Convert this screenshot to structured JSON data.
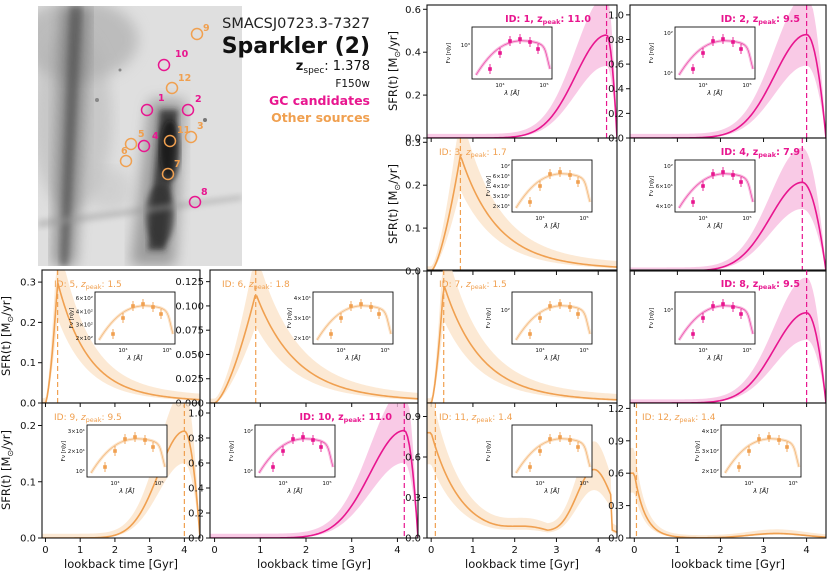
{
  "header": {
    "cluster": "SMACSJ0723.3-7327",
    "title": "Sparkler (2)",
    "z_label_main": "z",
    "z_label_sub": "spec",
    "z_value": ": 1.378",
    "filter": "F150w",
    "legend_gc": "GC candidates",
    "legend_other": "Other sources"
  },
  "colors": {
    "gc": "#e8168f",
    "other": "#f0a050",
    "gc_fill": "#f7bde0",
    "other_fill": "#fbe3c9"
  },
  "image_labels": [
    {
      "id": "9",
      "group": "other"
    },
    {
      "id": "10",
      "group": "gc"
    },
    {
      "id": "12",
      "group": "other"
    },
    {
      "id": "1",
      "group": "gc"
    },
    {
      "id": "2",
      "group": "gc"
    },
    {
      "id": "5",
      "group": "other"
    },
    {
      "id": "4",
      "group": "gc"
    },
    {
      "id": "11",
      "group": "other"
    },
    {
      "id": "3",
      "group": "other"
    },
    {
      "id": "6",
      "group": "other"
    },
    {
      "id": "7",
      "group": "other"
    },
    {
      "id": "8",
      "group": "gc"
    }
  ],
  "axes_text": {
    "xlabel": "lookback time [Gyr]",
    "ylabel": "SFR(t) [M",
    "ylabel_sun": "⊙",
    "ylabel_end": "/yr]",
    "inset_xlabel": "λ [Å]",
    "inset_ylabel": "Fν [nJy]"
  },
  "chart_data": [
    {
      "type": "line",
      "id": "1",
      "group": "gc",
      "label_prefix": "ID: 1, ",
      "label_z": "z",
      "label_zsub": "peak",
      "label_value": ": 11.0",
      "peak_gyr": 4.2,
      "ymax": 0.48,
      "ylim": [
        0,
        0.62
      ],
      "yticks": [
        0.0,
        0.2,
        0.4,
        0.6
      ],
      "yticklabels": [
        "0.0",
        "0.2",
        "0.4",
        "0.6"
      ],
      "shape": "late",
      "inset_ticks": [
        "10³"
      ]
    },
    {
      "type": "line",
      "id": "2",
      "group": "gc",
      "label_prefix": "ID: 2, ",
      "label_z": "z",
      "label_zsub": "peak",
      "label_value": ": 9.5",
      "peak_gyr": 4.0,
      "ymax": 0.84,
      "ylim": [
        0,
        1.08
      ],
      "yticks": [
        0.0,
        0.2,
        0.4,
        0.6,
        0.8,
        1.0
      ],
      "yticklabels": [
        "0.0",
        "0.2",
        "0.4",
        "0.6",
        "0.8",
        "1.0"
      ],
      "shape": "late",
      "inset_ticks": [
        "10²",
        "10¹"
      ]
    },
    {
      "type": "line",
      "id": "3",
      "group": "other",
      "label_prefix": "ID: 3, ",
      "label_z": "z",
      "label_zsub": "peak",
      "label_value": ": 1.7",
      "peak_gyr": 0.7,
      "ymax": 0.27,
      "ylim": [
        0,
        0.31
      ],
      "yticks": [
        0.0,
        0.1,
        0.2,
        0.3
      ],
      "yticklabels": [
        "0.0",
        "0.1",
        "0.2",
        "0.3"
      ],
      "shape": "early",
      "inset_ticks": [
        "10²",
        "6×10¹",
        "4×10¹",
        "3×10¹",
        "2×10¹"
      ]
    },
    {
      "type": "line",
      "id": "4",
      "group": "gc",
      "label_prefix": "ID: 4, ",
      "label_z": "z",
      "label_zsub": "peak",
      "label_value": ": 7.9",
      "peak_gyr": 3.9,
      "ymax": 0.7,
      "ylim": [
        0,
        1.05
      ],
      "yticks": [],
      "yticklabels": [],
      "shape": "late",
      "inset_ticks": [
        "10²",
        "6×10¹",
        "4×10¹"
      ]
    },
    {
      "type": "line",
      "id": "5",
      "group": "other",
      "label_prefix": "ID: 5, ",
      "label_z": "z",
      "label_zsub": "peak",
      "label_value": ": 1.5",
      "peak_gyr": 0.35,
      "ymax": 0.3,
      "ylim": [
        0,
        0.33
      ],
      "yticks": [
        0.0,
        0.1,
        0.2,
        0.3
      ],
      "yticklabels": [
        "0.0",
        "0.1",
        "0.2",
        "0.3"
      ],
      "shape": "early",
      "inset_ticks": [
        "6×10²",
        "4×10²",
        "3×10²",
        "2×10²"
      ]
    },
    {
      "type": "line",
      "id": "6",
      "group": "other",
      "label_prefix": "ID: 6, ",
      "label_z": "z",
      "label_zsub": "peak",
      "label_value": ": 1.8",
      "peak_gyr": 0.9,
      "ymax": 0.113,
      "ylim": [
        0,
        0.137
      ],
      "yticks": [
        0.0,
        0.025,
        0.05,
        0.075,
        0.1,
        0.125
      ],
      "yticklabels": [
        "0.000",
        "0.025",
        "0.050",
        "0.075",
        "0.100",
        "0.125"
      ],
      "shape": "early",
      "inset_ticks": [
        "4×10¹",
        "3×10¹",
        "2×10¹"
      ]
    },
    {
      "type": "line",
      "id": "7",
      "group": "other",
      "label_prefix": "ID: 7, ",
      "label_z": "z",
      "label_zsub": "peak",
      "label_value": ": 1.5",
      "peak_gyr": 0.3,
      "ymax": 0.42,
      "ylim": [
        0,
        0.47
      ],
      "yticks": [],
      "yticklabels": [],
      "shape": "early",
      "inset_ticks": [
        "10²"
      ]
    },
    {
      "type": "line",
      "id": "8",
      "group": "gc",
      "label_prefix": "ID: 8, ",
      "label_z": "z",
      "label_zsub": "peak",
      "label_value": ": 9.5",
      "peak_gyr": 4.0,
      "ymax": 0.95,
      "ylim": [
        0,
        1.4
      ],
      "yticks": [],
      "yticklabels": [],
      "shape": "late",
      "inset_ticks": [
        "10³"
      ]
    },
    {
      "type": "line",
      "id": "9",
      "group": "other",
      "label_prefix": "ID: 9, ",
      "label_z": "z",
      "label_zsub": "peak",
      "label_value": ": 9.5",
      "peak_gyr": 4.0,
      "ymax": 0.19,
      "ylim": [
        0,
        0.24
      ],
      "yticks": [
        0.0,
        0.1,
        0.2
      ],
      "yticklabels": [
        "0.0",
        "0.1",
        "0.2"
      ],
      "shape": "late",
      "inset_ticks": [
        "3×10¹",
        "2×10¹",
        "10¹"
      ]
    },
    {
      "type": "line",
      "id": "10",
      "group": "gc",
      "label_prefix": "ID: 10, ",
      "label_z": "z",
      "label_zsub": "peak",
      "label_value": ": 11.0",
      "peak_gyr": 4.15,
      "ymax": 0.86,
      "ylim": [
        0,
        1.08
      ],
      "yticks": [
        0.0,
        0.2,
        0.4,
        0.6,
        0.8,
        1.0
      ],
      "yticklabels": [
        "0.0",
        "0.2",
        "0.4",
        "0.6",
        "0.8",
        "1.0"
      ],
      "shape": "late",
      "inset_ticks": [
        "10²",
        "10¹"
      ]
    },
    {
      "type": "line",
      "id": "11",
      "group": "other",
      "label_prefix": "ID: 11, ",
      "label_z": "z",
      "label_zsub": "peak",
      "label_value": ": 1.4",
      "peak_gyr": 0.1,
      "ymax": 0.78,
      "ylim": [
        0,
        1.0
      ],
      "yticks": [
        0.0,
        0.3,
        0.6,
        0.9
      ],
      "yticklabels": [
        "0.0",
        "0.3",
        "0.6",
        "0.9"
      ],
      "shape": "bimodal",
      "inset_ticks": []
    },
    {
      "type": "line",
      "id": "12",
      "group": "other",
      "label_prefix": "ID: 12, ",
      "label_z": "z",
      "label_zsub": "peak",
      "label_value": ": 1.4",
      "peak_gyr": 0.05,
      "ymax": 0.6,
      "ylim": [
        0,
        1.25
      ],
      "yticks": [
        0.0,
        0.3,
        0.6,
        0.9,
        1.2
      ],
      "yticklabels": [
        "0.0",
        "0.3",
        "0.6",
        "0.9",
        "1.2"
      ],
      "shape": "decline",
      "inset_ticks": [
        "4×10²",
        "3×10²",
        "2×10²"
      ]
    }
  ],
  "xaxis": {
    "xlim": [
      -0.1,
      4.45
    ],
    "xticks": [
      0,
      1,
      2,
      3,
      4
    ],
    "xticklabels": [
      "0",
      "1",
      "2",
      "3",
      "4"
    ]
  }
}
